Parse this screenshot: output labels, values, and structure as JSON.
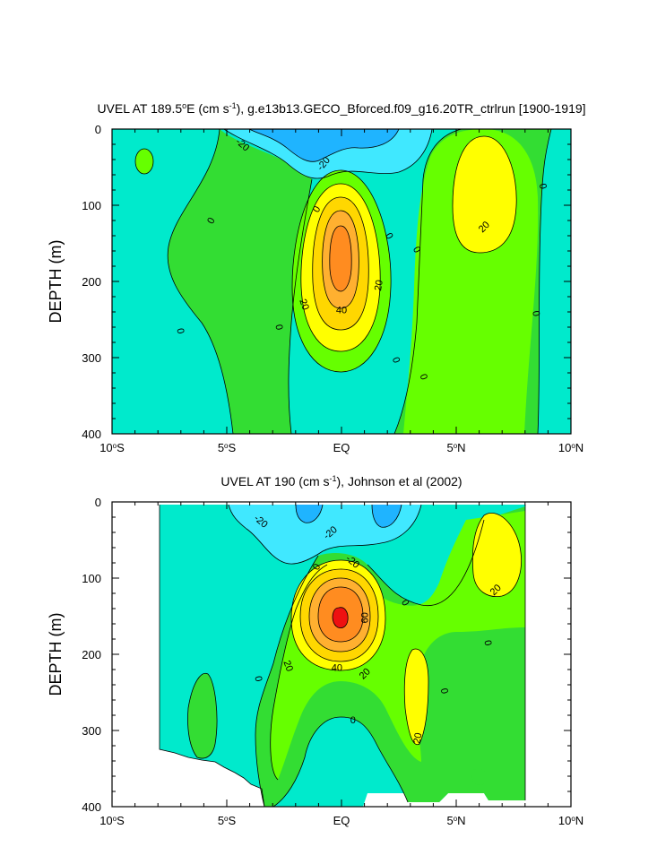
{
  "colors": {
    "c_lt_neg20": "#1fb4ff",
    "c_neg20_0": "#40e8ff",
    "c_neg10_0": "#00eacc",
    "c_0_10": "#33dd33",
    "c_10_20": "#66ff00",
    "c_20_30": "#ffff00",
    "c_30_40": "#ffd700",
    "c_40_50": "#ffb030",
    "c_50_60": "#ff8c20",
    "c_gt_60": "#ee1111",
    "missing": "#ffffff"
  },
  "chart_data": [
    {
      "type": "contour",
      "title": "UVEL AT 189.5°E (cm s⁻¹), g.e13b13.GECO_Bforced.f09_g16.20TR_ctrlrun [1900-1919]",
      "title_parts": {
        "pre": "UVEL AT 189.5",
        "sup1": "o",
        "mid": "E (cm s",
        "sup2": "-1",
        "post": "), g.e13b13.GECO_Bforced.f09_g16.20TR_ctrlrun [1900-1919]"
      },
      "xlabel": "",
      "ylabel": "DEPTH (m)",
      "xlim": [
        -10,
        10
      ],
      "ylim": [
        0,
        400
      ],
      "y_inverted": true,
      "x_ticks": [
        {
          "value": -10,
          "label": "10",
          "deg": "o",
          "suffix": "S"
        },
        {
          "value": -5,
          "label": "5",
          "deg": "o",
          "suffix": "S"
        },
        {
          "value": 0,
          "label": "EQ",
          "deg": "",
          "suffix": ""
        },
        {
          "value": 5,
          "label": "5",
          "deg": "o",
          "suffix": "N"
        },
        {
          "value": 10,
          "label": "10",
          "deg": "o",
          "suffix": "N"
        }
      ],
      "y_ticks": [
        {
          "value": 0,
          "label": "0"
        },
        {
          "value": 100,
          "label": "100"
        },
        {
          "value": 200,
          "label": "200"
        },
        {
          "value": 300,
          "label": "300"
        },
        {
          "value": 400,
          "label": "400"
        }
      ],
      "contour_interval": 10,
      "core_max_approx": 55,
      "contour_labels": [
        {
          "text": "-20",
          "lat": -4.3,
          "depth": 20,
          "rot": 40
        },
        {
          "text": "-20",
          "lat": -0.8,
          "depth": 45,
          "rot": -50
        },
        {
          "text": "0",
          "lat": -5.7,
          "depth": 120,
          "rot": -60
        },
        {
          "text": "0",
          "lat": -1.1,
          "depth": 105,
          "rot": -60
        },
        {
          "text": "0",
          "lat": 2.1,
          "depth": 140,
          "rot": 60
        },
        {
          "text": "0",
          "lat": 3.3,
          "depth": 158,
          "rot": 60
        },
        {
          "text": "20",
          "lat": 1.6,
          "depth": 205,
          "rot": -80
        },
        {
          "text": "20",
          "lat": -1.6,
          "depth": 230,
          "rot": 70
        },
        {
          "text": "40",
          "lat": 0.0,
          "depth": 237,
          "rot": 0
        },
        {
          "text": "0",
          "lat": -2.7,
          "depth": 260,
          "rot": 80
        },
        {
          "text": "0",
          "lat": -7.0,
          "depth": 265,
          "rot": 80
        },
        {
          "text": "0",
          "lat": 2.4,
          "depth": 303,
          "rot": 70
        },
        {
          "text": "0",
          "lat": 3.6,
          "depth": 325,
          "rot": 70
        },
        {
          "text": "20",
          "lat": 6.2,
          "depth": 128,
          "rot": -45
        },
        {
          "text": "0",
          "lat": 8.8,
          "depth": 75,
          "rot": 80
        },
        {
          "text": "0",
          "lat": 8.5,
          "depth": 242,
          "rot": 80
        }
      ]
    },
    {
      "type": "contour",
      "title": "UVEL AT 190 (cm s⁻¹), Johnson et al (2002)",
      "title_parts": {
        "pre": "UVEL AT 190 (cm s",
        "sup2": "-1",
        "post": "), Johnson et al (2002)"
      },
      "xlabel": "",
      "ylabel": "DEPTH (m)",
      "xlim": [
        -10,
        10
      ],
      "ylim": [
        0,
        400
      ],
      "y_inverted": true,
      "data_lat_range": [
        -8,
        8
      ],
      "x_ticks": [
        {
          "value": -10,
          "label": "10",
          "deg": "o",
          "suffix": "S"
        },
        {
          "value": -5,
          "label": "5",
          "deg": "o",
          "suffix": "S"
        },
        {
          "value": 0,
          "label": "EQ",
          "deg": "",
          "suffix": ""
        },
        {
          "value": 5,
          "label": "5",
          "deg": "o",
          "suffix": "N"
        },
        {
          "value": 10,
          "label": "10",
          "deg": "o",
          "suffix": "N"
        }
      ],
      "y_ticks": [
        {
          "value": 0,
          "label": "0"
        },
        {
          "value": 100,
          "label": "100"
        },
        {
          "value": 200,
          "label": "200"
        },
        {
          "value": 300,
          "label": "300"
        },
        {
          "value": 400,
          "label": "400"
        }
      ],
      "contour_interval": 10,
      "core_max_approx": 70,
      "contour_labels": [
        {
          "text": "-20",
          "lat": -3.5,
          "depth": 25,
          "rot": 40
        },
        {
          "text": "-20",
          "lat": -0.5,
          "depth": 40,
          "rot": -40
        },
        {
          "text": "0",
          "lat": -1.1,
          "depth": 85,
          "rot": -60
        },
        {
          "text": "-20",
          "lat": 0.5,
          "depth": 78,
          "rot": 40
        },
        {
          "text": "0",
          "lat": 2.8,
          "depth": 132,
          "rot": 60
        },
        {
          "text": "60",
          "lat": 1.0,
          "depth": 152,
          "rot": -90
        },
        {
          "text": "40",
          "lat": -0.2,
          "depth": 217,
          "rot": 0
        },
        {
          "text": "20",
          "lat": -2.3,
          "depth": 215,
          "rot": 70
        },
        {
          "text": "20",
          "lat": 1.0,
          "depth": 225,
          "rot": -45
        },
        {
          "text": "0",
          "lat": -3.6,
          "depth": 232,
          "rot": 80
        },
        {
          "text": "0",
          "lat": 0.5,
          "depth": 286,
          "rot": 0
        },
        {
          "text": "20",
          "lat": 3.3,
          "depth": 310,
          "rot": -80
        },
        {
          "text": "0",
          "lat": 4.5,
          "depth": 248,
          "rot": 80
        },
        {
          "text": "20",
          "lat": 6.7,
          "depth": 115,
          "rot": -45
        },
        {
          "text": "0",
          "lat": 6.4,
          "depth": 185,
          "rot": 80
        }
      ]
    }
  ]
}
